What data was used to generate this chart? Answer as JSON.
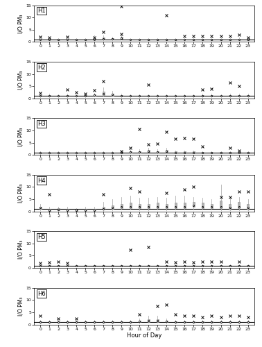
{
  "homes": [
    "H1",
    "H2",
    "H3",
    "H4",
    "H5",
    "H6"
  ],
  "hours": [
    0,
    1,
    2,
    3,
    4,
    5,
    6,
    7,
    8,
    9,
    10,
    11,
    12,
    13,
    14,
    15,
    16,
    17,
    18,
    19,
    20,
    21,
    22,
    23
  ],
  "ylim": [
    0,
    15
  ],
  "yticks": [
    0,
    5,
    10,
    15
  ],
  "unity_line": 1.0,
  "xlabel": "Hour of Day",
  "ylabel": "I/O PM₃",
  "box_color": "#b0b0b0",
  "whisker_color": "#b0b0b0",
  "outlier_color": "#000000",
  "unity_color": "#000000",
  "box_width": 0.25,
  "H1": {
    "medians": [
      1.0,
      1.0,
      0.9,
      1.0,
      0.9,
      0.9,
      1.0,
      1.3,
      1.1,
      1.5,
      1.0,
      1.0,
      0.9,
      0.9,
      0.9,
      0.9,
      1.0,
      0.9,
      0.9,
      0.9,
      0.9,
      0.9,
      1.0,
      0.9
    ],
    "q1": [
      0.8,
      0.8,
      0.7,
      0.8,
      0.7,
      0.7,
      0.8,
      1.0,
      0.9,
      1.1,
      0.8,
      0.8,
      0.7,
      0.7,
      0.7,
      0.7,
      0.8,
      0.7,
      0.7,
      0.7,
      0.7,
      0.7,
      0.8,
      0.7
    ],
    "q3": [
      1.2,
      1.2,
      1.1,
      1.2,
      1.1,
      1.1,
      1.3,
      1.8,
      1.4,
      2.0,
      1.2,
      1.2,
      1.1,
      1.1,
      1.1,
      1.1,
      1.2,
      1.1,
      1.1,
      1.1,
      1.1,
      1.1,
      1.3,
      1.1
    ],
    "whisker_lo": [
      0.6,
      0.6,
      0.5,
      0.6,
      0.5,
      0.5,
      0.6,
      0.7,
      0.7,
      0.8,
      0.6,
      0.6,
      0.5,
      0.5,
      0.5,
      0.5,
      0.6,
      0.5,
      0.5,
      0.5,
      0.5,
      0.5,
      0.6,
      0.5
    ],
    "whisker_hi": [
      1.5,
      1.5,
      1.4,
      1.5,
      1.4,
      1.4,
      2.5,
      2.5,
      2.0,
      3.0,
      1.5,
      1.5,
      1.4,
      1.4,
      1.4,
      1.4,
      1.5,
      1.4,
      1.4,
      1.4,
      1.4,
      1.4,
      1.8,
      1.4
    ],
    "outliers_x": [
      0,
      1,
      3,
      6,
      7,
      9,
      9,
      14,
      16,
      17,
      18,
      19,
      20,
      21,
      22,
      23
    ],
    "outliers_y": [
      1.9,
      1.7,
      2.0,
      1.8,
      4.0,
      14.5,
      3.2,
      11.0,
      2.3,
      2.3,
      2.3,
      2.3,
      2.3,
      2.3,
      2.8,
      1.7
    ]
  },
  "H2": {
    "medians": [
      1.0,
      1.0,
      0.9,
      1.0,
      0.9,
      0.9,
      1.2,
      2.0,
      1.5,
      1.0,
      0.9,
      0.9,
      0.9,
      0.9,
      0.9,
      0.9,
      0.9,
      0.9,
      1.0,
      1.0,
      0.9,
      1.0,
      1.0,
      1.0
    ],
    "q1": [
      0.8,
      0.8,
      0.7,
      0.8,
      0.7,
      0.7,
      0.9,
      1.4,
      1.1,
      0.8,
      0.7,
      0.7,
      0.7,
      0.7,
      0.7,
      0.7,
      0.7,
      0.7,
      0.8,
      0.8,
      0.7,
      0.8,
      0.8,
      0.8
    ],
    "q3": [
      1.2,
      1.3,
      1.1,
      1.2,
      1.1,
      1.1,
      1.6,
      2.8,
      2.0,
      1.2,
      1.1,
      1.1,
      1.1,
      1.1,
      1.1,
      1.1,
      1.1,
      1.1,
      1.2,
      1.2,
      1.1,
      1.3,
      1.3,
      1.3
    ],
    "whisker_lo": [
      0.5,
      0.5,
      0.5,
      0.5,
      0.5,
      0.5,
      0.6,
      0.8,
      0.7,
      0.5,
      0.5,
      0.5,
      0.5,
      0.5,
      0.5,
      0.5,
      0.5,
      0.5,
      0.5,
      0.5,
      0.5,
      0.5,
      0.5,
      0.5
    ],
    "whisker_hi": [
      1.8,
      2.0,
      1.5,
      1.8,
      1.5,
      1.5,
      2.2,
      4.5,
      3.0,
      1.8,
      1.5,
      1.5,
      1.5,
      1.5,
      1.5,
      1.5,
      1.5,
      1.5,
      1.8,
      1.8,
      1.5,
      2.0,
      2.0,
      1.8
    ],
    "outliers_x": [
      0,
      3,
      4,
      5,
      6,
      7,
      12,
      18,
      19,
      21,
      22
    ],
    "outliers_y": [
      2.2,
      3.5,
      2.5,
      2.0,
      3.2,
      7.0,
      5.5,
      3.5,
      4.0,
      6.5,
      5.0
    ]
  },
  "H3": {
    "medians": [
      0.8,
      0.8,
      0.8,
      0.8,
      0.8,
      0.8,
      0.8,
      0.8,
      0.8,
      1.0,
      1.2,
      1.2,
      1.5,
      1.2,
      1.5,
      1.0,
      1.0,
      1.0,
      0.9,
      0.9,
      0.9,
      0.9,
      0.9,
      0.9
    ],
    "q1": [
      0.6,
      0.6,
      0.6,
      0.6,
      0.6,
      0.6,
      0.6,
      0.6,
      0.6,
      0.7,
      0.9,
      0.9,
      1.1,
      0.9,
      1.1,
      0.7,
      0.7,
      0.7,
      0.7,
      0.7,
      0.7,
      0.7,
      0.7,
      0.7
    ],
    "q3": [
      1.0,
      1.0,
      1.0,
      1.0,
      1.0,
      1.0,
      1.0,
      1.0,
      1.0,
      1.3,
      1.5,
      1.5,
      2.0,
      1.5,
      2.0,
      1.3,
      1.3,
      1.3,
      1.1,
      1.1,
      1.1,
      1.1,
      1.1,
      1.1
    ],
    "whisker_lo": [
      0.4,
      0.4,
      0.4,
      0.4,
      0.4,
      0.4,
      0.4,
      0.4,
      0.4,
      0.5,
      0.6,
      0.6,
      0.7,
      0.6,
      0.7,
      0.5,
      0.5,
      0.5,
      0.5,
      0.5,
      0.5,
      0.5,
      0.5,
      0.5
    ],
    "whisker_hi": [
      1.3,
      1.3,
      1.3,
      1.3,
      1.3,
      1.3,
      1.3,
      1.3,
      1.3,
      1.8,
      2.2,
      2.2,
      3.0,
      2.2,
      3.0,
      1.8,
      1.8,
      1.8,
      1.5,
      1.5,
      1.5,
      1.5,
      1.5,
      1.5
    ],
    "outliers_x": [
      9,
      10,
      11,
      12,
      13,
      14,
      15,
      16,
      17,
      18,
      21,
      22
    ],
    "outliers_y": [
      1.5,
      3.0,
      10.5,
      4.2,
      4.5,
      9.5,
      6.5,
      7.0,
      6.5,
      3.5,
      3.0,
      1.8
    ]
  },
  "H4": {
    "medians": [
      1.5,
      0.4,
      0.7,
      0.5,
      0.4,
      0.5,
      0.5,
      1.0,
      1.5,
      1.8,
      2.0,
      1.8,
      1.8,
      2.0,
      1.8,
      2.0,
      2.0,
      2.5,
      2.0,
      2.0,
      2.0,
      1.5,
      2.0,
      1.5
    ],
    "q1": [
      1.0,
      0.2,
      0.4,
      0.3,
      0.2,
      0.3,
      0.3,
      0.6,
      0.9,
      1.2,
      1.4,
      1.2,
      1.2,
      1.4,
      1.2,
      1.4,
      1.4,
      1.8,
      1.4,
      1.4,
      1.2,
      0.8,
      1.2,
      0.8
    ],
    "q3": [
      2.0,
      1.0,
      1.2,
      1.0,
      0.8,
      1.0,
      1.0,
      2.0,
      2.5,
      3.0,
      3.5,
      3.0,
      3.0,
      3.5,
      3.0,
      3.5,
      3.5,
      4.0,
      3.5,
      3.0,
      4.5,
      3.0,
      4.0,
      3.0
    ],
    "whisker_lo": [
      0.3,
      0.1,
      0.2,
      0.1,
      0.1,
      0.1,
      0.1,
      0.2,
      0.4,
      0.6,
      0.7,
      0.5,
      0.5,
      0.7,
      0.5,
      0.7,
      0.7,
      0.8,
      0.7,
      0.7,
      0.4,
      0.3,
      0.5,
      0.3
    ],
    "whisker_hi": [
      3.0,
      1.8,
      2.0,
      1.8,
      1.4,
      1.8,
      1.8,
      4.0,
      5.0,
      6.0,
      6.5,
      5.5,
      5.5,
      6.0,
      5.5,
      6.5,
      6.5,
      6.0,
      5.5,
      5.0,
      11.0,
      6.0,
      6.0,
      5.0
    ],
    "outliers_x": [
      1,
      7,
      10,
      11,
      14,
      16,
      17,
      20,
      21,
      22,
      23
    ],
    "outliers_y": [
      7.0,
      7.0,
      9.5,
      8.0,
      7.5,
      9.0,
      10.0,
      6.0,
      6.0,
      8.0,
      8.0
    ]
  },
  "H5": {
    "medians": [
      0.9,
      0.9,
      0.9,
      0.9,
      0.9,
      0.9,
      0.9,
      0.9,
      0.9,
      0.9,
      0.9,
      0.9,
      0.9,
      0.9,
      0.9,
      0.9,
      0.9,
      0.9,
      0.9,
      0.9,
      0.9,
      0.9,
      0.9,
      0.9
    ],
    "q1": [
      0.7,
      0.7,
      0.7,
      0.7,
      0.7,
      0.7,
      0.7,
      0.7,
      0.7,
      0.7,
      0.7,
      0.7,
      0.7,
      0.7,
      0.7,
      0.7,
      0.7,
      0.7,
      0.7,
      0.7,
      0.7,
      0.7,
      0.7,
      0.7
    ],
    "q3": [
      1.1,
      1.1,
      1.1,
      1.1,
      1.1,
      1.1,
      1.1,
      1.1,
      1.1,
      1.1,
      1.1,
      1.1,
      1.1,
      1.1,
      1.1,
      1.1,
      1.1,
      1.1,
      1.1,
      1.1,
      1.1,
      1.1,
      1.1,
      1.1
    ],
    "whisker_lo": [
      0.5,
      0.5,
      0.5,
      0.5,
      0.5,
      0.5,
      0.5,
      0.5,
      0.5,
      0.5,
      0.5,
      0.5,
      0.5,
      0.5,
      0.5,
      0.5,
      0.5,
      0.5,
      0.5,
      0.5,
      0.5,
      0.5,
      0.5,
      0.5
    ],
    "whisker_hi": [
      1.5,
      1.5,
      1.5,
      1.5,
      1.5,
      1.5,
      1.5,
      1.5,
      1.5,
      1.5,
      1.5,
      1.5,
      1.5,
      1.5,
      1.5,
      1.5,
      1.5,
      1.5,
      1.5,
      1.5,
      1.5,
      1.5,
      1.5,
      1.5
    ],
    "outliers_x": [
      0,
      1,
      2,
      3,
      10,
      12,
      14,
      15,
      16,
      17,
      18,
      19,
      20,
      22
    ],
    "outliers_y": [
      2.0,
      2.2,
      2.5,
      2.0,
      7.5,
      8.5,
      2.5,
      2.2,
      2.5,
      2.2,
      2.5,
      2.5,
      2.5,
      2.5
    ]
  },
  "H6": {
    "medians": [
      0.9,
      0.9,
      0.9,
      0.9,
      0.9,
      0.9,
      0.9,
      0.9,
      0.9,
      0.9,
      0.9,
      1.2,
      1.5,
      1.5,
      1.2,
      0.9,
      0.9,
      0.9,
      0.9,
      0.9,
      0.9,
      0.9,
      0.9,
      0.9
    ],
    "q1": [
      0.7,
      0.7,
      0.7,
      0.7,
      0.7,
      0.7,
      0.7,
      0.7,
      0.7,
      0.7,
      0.7,
      0.9,
      1.1,
      1.1,
      0.9,
      0.7,
      0.7,
      0.7,
      0.7,
      0.7,
      0.7,
      0.7,
      0.7,
      0.7
    ],
    "q3": [
      1.2,
      1.2,
      1.2,
      1.2,
      1.2,
      1.2,
      1.2,
      1.2,
      1.2,
      1.2,
      1.2,
      1.6,
      2.0,
      2.0,
      1.6,
      1.2,
      1.2,
      1.2,
      1.2,
      1.2,
      1.2,
      1.2,
      1.2,
      1.2
    ],
    "whisker_lo": [
      0.4,
      0.4,
      0.4,
      0.4,
      0.4,
      0.4,
      0.4,
      0.4,
      0.4,
      0.4,
      0.4,
      0.5,
      0.6,
      0.6,
      0.5,
      0.4,
      0.4,
      0.4,
      0.4,
      0.4,
      0.4,
      0.4,
      0.4,
      0.4
    ],
    "whisker_hi": [
      1.8,
      1.8,
      1.8,
      1.8,
      1.8,
      1.8,
      1.8,
      1.8,
      1.8,
      1.8,
      1.8,
      2.5,
      3.5,
      3.5,
      2.5,
      1.8,
      1.8,
      1.8,
      1.8,
      1.8,
      1.8,
      1.8,
      1.8,
      1.8
    ],
    "outliers_x": [
      0,
      2,
      4,
      11,
      13,
      14,
      15,
      16,
      17,
      18,
      19,
      20,
      21,
      22,
      23
    ],
    "outliers_y": [
      3.5,
      2.5,
      2.5,
      4.0,
      7.5,
      8.0,
      4.0,
      3.5,
      3.5,
      3.0,
      3.5,
      3.0,
      3.5,
      3.5,
      3.0
    ]
  }
}
